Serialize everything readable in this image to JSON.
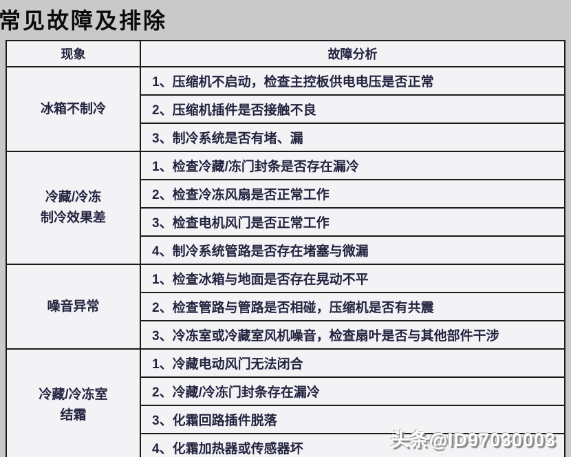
{
  "page": {
    "title": "常见故障及排除",
    "watermark": "头条@ID97030003"
  },
  "table": {
    "headers": {
      "phenomenon": "现象",
      "analysis": "故障分析"
    },
    "sections": [
      {
        "label": "冰箱不制冷",
        "label_lines": [
          "冰箱不制冷"
        ],
        "rows": [
          "1、压缩机不启动，检查主控板供电电压是否正常",
          "2、压缩机插件是否接触不良",
          "3、制冷系统是否有堵、漏"
        ]
      },
      {
        "label": "冷藏/冷冻制冷效果差",
        "label_lines": [
          "冷藏/冷冻",
          "制冷效果差"
        ],
        "rows": [
          "1、检查冷藏/冻门封条是否存在漏冷",
          "2、检查冷冻风扇是否正常工作",
          "3、检查电机风门是否正常工作",
          "4、制冷系统管路是否存在堵塞与微漏"
        ]
      },
      {
        "label": "噪音异常",
        "label_lines": [
          "噪音异常"
        ],
        "rows": [
          "1、检查冰箱与地面是否存在晃动不平",
          "2、检查管路与管路是否相碰，压缩机是否有共震",
          "3、冷冻室或冷藏室风机噪音，检查扇叶是否与其他部件干涉"
        ]
      },
      {
        "label": "冷藏/冷冻室结霜",
        "label_lines": [
          "冷藏/冷冻室",
          "结霜"
        ],
        "rows": [
          "1、冷藏电动风门无法闭合",
          "2、冷藏/冷冻门封条存在漏冷",
          "3、化霜回路插件脱落",
          "4、化霜加热器或传感器坏"
        ]
      }
    ]
  },
  "colors": {
    "page_background": "#c9c9c9",
    "cell_background": "#f3f3f6",
    "border": "#1b1b1b",
    "text": "#23233f",
    "watermark_text": "#ffffff"
  }
}
